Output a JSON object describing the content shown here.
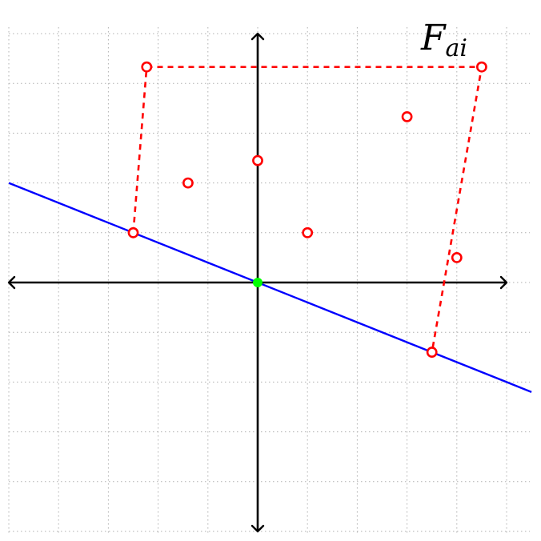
{
  "diagram": {
    "label_main": "F",
    "label_sub": "ai",
    "colors": {
      "region": "#ff0000",
      "boundary": "#0000ff",
      "origin": "#00ff00",
      "axes": "#000000",
      "grid": "#b0b0b0"
    },
    "x_range": [
      -5,
      5.5
    ],
    "y_range": [
      -5,
      5
    ],
    "grid_x": [
      -5,
      -4,
      -3,
      -2,
      -1,
      0,
      1,
      2,
      3,
      4,
      5
    ],
    "grid_y": [
      -5,
      -4,
      -3,
      -2,
      -1,
      0,
      1,
      2,
      3,
      4,
      5
    ],
    "axes": {
      "x_from": -5,
      "x_to": 5,
      "y_from": -5,
      "y_to": 5
    },
    "origin": [
      0,
      0
    ],
    "boundary_line": {
      "slope": -0.4,
      "intercept": 0
    },
    "hull_vertices": [
      [
        -2.5,
        1
      ],
      [
        -2.23,
        4.33
      ],
      [
        4.5,
        4.33
      ],
      [
        3.5,
        -1.4
      ]
    ],
    "points": [
      [
        -2.5,
        1
      ],
      [
        -2.23,
        4.33
      ],
      [
        4.5,
        4.33
      ],
      [
        3.5,
        -1.4
      ],
      [
        0,
        2.45
      ],
      [
        -1.4,
        2
      ],
      [
        1,
        1
      ],
      [
        3,
        3.33
      ],
      [
        4,
        0.5
      ]
    ]
  }
}
